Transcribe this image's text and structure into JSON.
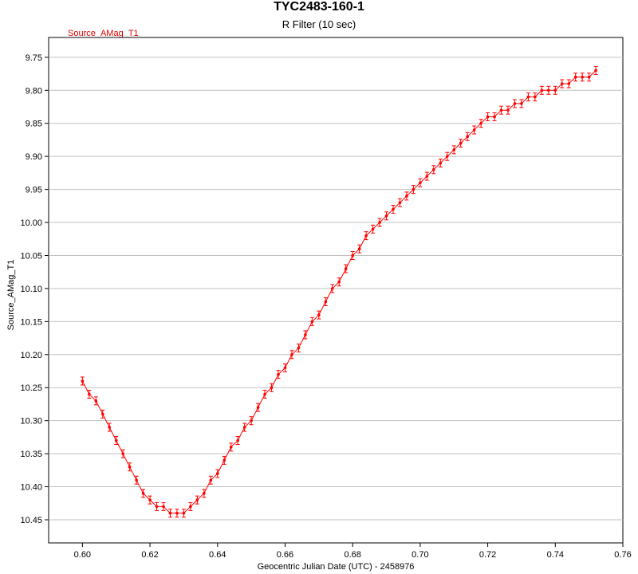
{
  "chart_data": {
    "type": "scatter",
    "title": "TYC2483-160-1",
    "subtitle": "R Filter (10 sec)",
    "xlabel": "Geocentric Julian Date (UTC) - 2458976",
    "ylabel": "Source_AMag_T1",
    "legend": "Source_AMag_T1",
    "xlim": [
      0.59,
      0.76
    ],
    "ylim": [
      10.485,
      9.72
    ],
    "y_inverted": true,
    "x_ticks": [
      "0.60",
      "0.62",
      "0.64",
      "0.66",
      "0.68",
      "0.70",
      "0.72",
      "0.74",
      "0.76"
    ],
    "y_ticks": [
      "9.75",
      "9.80",
      "9.85",
      "9.90",
      "9.95",
      "10.00",
      "10.05",
      "10.10",
      "10.15",
      "10.20",
      "10.25",
      "10.30",
      "10.35",
      "10.40",
      "10.45"
    ],
    "grid": "horizontal",
    "series": [
      {
        "name": "Source_AMag_T1",
        "color": "#ff0000",
        "x": [
          0.6,
          0.602,
          0.604,
          0.606,
          0.608,
          0.61,
          0.612,
          0.614,
          0.616,
          0.618,
          0.62,
          0.622,
          0.624,
          0.626,
          0.628,
          0.63,
          0.632,
          0.634,
          0.636,
          0.638,
          0.64,
          0.642,
          0.644,
          0.646,
          0.648,
          0.65,
          0.652,
          0.654,
          0.656,
          0.658,
          0.66,
          0.662,
          0.664,
          0.666,
          0.668,
          0.67,
          0.672,
          0.674,
          0.676,
          0.678,
          0.68,
          0.682,
          0.684,
          0.686,
          0.688,
          0.69,
          0.692,
          0.694,
          0.696,
          0.698,
          0.7,
          0.702,
          0.704,
          0.706,
          0.708,
          0.71,
          0.712,
          0.714,
          0.716,
          0.718,
          0.72,
          0.722,
          0.724,
          0.726,
          0.728,
          0.73,
          0.732,
          0.734,
          0.736,
          0.738,
          0.74,
          0.742,
          0.744,
          0.746,
          0.748,
          0.75,
          0.752
        ],
        "y": [
          10.24,
          10.26,
          10.27,
          10.29,
          10.31,
          10.33,
          10.35,
          10.37,
          10.39,
          10.41,
          10.42,
          10.43,
          10.43,
          10.44,
          10.44,
          10.44,
          10.43,
          10.42,
          10.41,
          10.39,
          10.38,
          10.36,
          10.34,
          10.33,
          10.31,
          10.3,
          10.28,
          10.26,
          10.25,
          10.23,
          10.22,
          10.2,
          10.19,
          10.17,
          10.15,
          10.14,
          10.12,
          10.1,
          10.09,
          10.07,
          10.05,
          10.04,
          10.02,
          10.01,
          10.0,
          9.99,
          9.98,
          9.97,
          9.96,
          9.95,
          9.94,
          9.93,
          9.92,
          9.91,
          9.9,
          9.89,
          9.88,
          9.87,
          9.86,
          9.85,
          9.84,
          9.84,
          9.83,
          9.83,
          9.82,
          9.82,
          9.81,
          9.81,
          9.8,
          9.8,
          9.8,
          9.79,
          9.79,
          9.78,
          9.78,
          9.78,
          9.77
        ]
      }
    ]
  }
}
